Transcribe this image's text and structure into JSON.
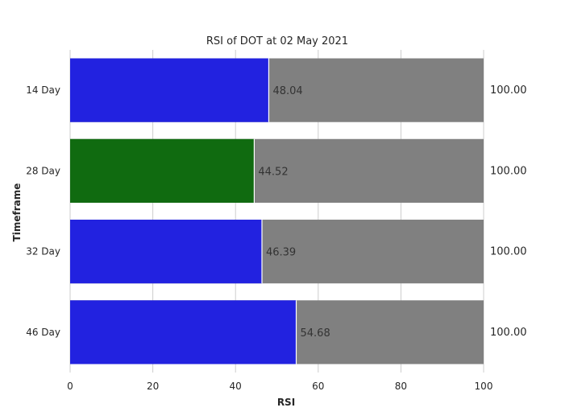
{
  "chart_data": {
    "type": "bar",
    "orientation": "horizontal",
    "stacked": true,
    "title": "RSI of DOT at 02 May 2021",
    "xlabel": "RSI",
    "ylabel": "Timeframe",
    "xlim": [
      0,
      100
    ],
    "xticks": [
      0,
      20,
      40,
      60,
      80,
      100
    ],
    "grid": true,
    "categories": [
      "14 Day",
      "28 Day",
      "32 Day",
      "46 Day"
    ],
    "values": [
      48.04,
      44.52,
      46.39,
      54.68
    ],
    "value_labels": [
      "48.04",
      "44.52",
      "46.39",
      "54.68"
    ],
    "totals": [
      100,
      100,
      100,
      100
    ],
    "total_labels": [
      "100.00",
      "100.00",
      "100.00",
      "100.00"
    ],
    "bar_colors": [
      "#2222e0",
      "#106b10",
      "#2222e0",
      "#2222e0"
    ],
    "remainder_color": "#808080",
    "grid_color": "#cccccc"
  }
}
